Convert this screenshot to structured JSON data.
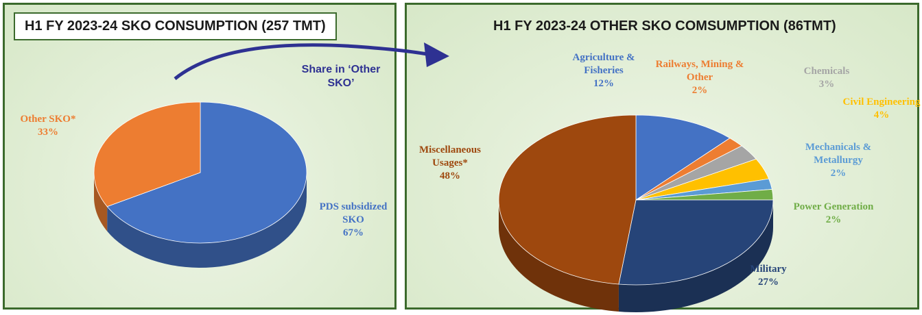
{
  "chart_data": [
    {
      "type": "pie",
      "title": "H1 FY 2023-24 SKO CONSUMPTION (257 TMT)",
      "categories": [
        "PDS subsidized SKO",
        "Other SKO*"
      ],
      "values": [
        67,
        33
      ],
      "value_labels": [
        "67%",
        "33%"
      ],
      "colors": [
        "#4472c4",
        "#ed7d31"
      ],
      "annotation": "Share in ‘Other SKO’"
    },
    {
      "type": "pie",
      "title": "H1 FY 2023-24 OTHER SKO COMSUMPTION (86TMT)",
      "categories": [
        "Agriculture & Fisheries",
        "Railways, Mining & Other",
        "Chemicals",
        "Civil Engineering",
        "Mechanicals & Metallurgy",
        "Power Generation",
        "Military",
        "Miscellaneous Usages*"
      ],
      "values": [
        12,
        2,
        3,
        4,
        2,
        2,
        27,
        48
      ],
      "value_labels": [
        "12%",
        "2%",
        "3%",
        "4%",
        "2%",
        "2%",
        "27%",
        "48%"
      ],
      "colors": [
        "#4472c4",
        "#ed7d31",
        "#a5a5a5",
        "#ffc000",
        "#5b9bd5",
        "#70ad47",
        "#264478",
        "#9e480e"
      ]
    }
  ]
}
